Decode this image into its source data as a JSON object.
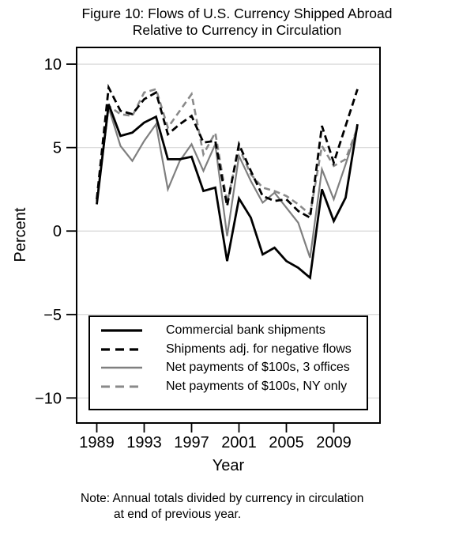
{
  "title": {
    "line1": "Figure 10: Flows of U.S. Currency Shipped Abroad",
    "line2": "Relative to Currency in Circulation"
  },
  "axes": {
    "y_label": "Percent",
    "x_label": "Year",
    "y_ticks": [
      {
        "value": 10,
        "label": "10"
      },
      {
        "value": 5,
        "label": "5"
      },
      {
        "value": 0,
        "label": "0"
      },
      {
        "value": -5,
        "label": "−5"
      },
      {
        "value": -10,
        "label": "−10"
      }
    ],
    "x_ticks": [
      {
        "value": 1989,
        "label": "1989"
      },
      {
        "value": 1993,
        "label": "1993"
      },
      {
        "value": 1997,
        "label": "1997"
      },
      {
        "value": 2001,
        "label": "2001"
      },
      {
        "value": 2005,
        "label": "2005"
      },
      {
        "value": 2009,
        "label": "2009"
      }
    ]
  },
  "note": {
    "line1": "Note: Annual totals divided by currency in circulation",
    "line2": "at end of previous year."
  },
  "colors": {
    "background": "#ffffff",
    "plot_border": "#000000",
    "gridline": "#d8d8d8",
    "tick": "#000000",
    "black_series": "#000000",
    "gray_series": "#7f7f7f",
    "gray_dashed_series": "#8a8a8a"
  },
  "chart_data": {
    "type": "line",
    "title": "Figure 10: Flows of U.S. Currency Shipped Abroad Relative to Currency in Circulation",
    "xlabel": "Year",
    "ylabel": "Percent",
    "xlim": [
      1987.3,
      2012.9
    ],
    "ylim": [
      -11.5,
      11.0
    ],
    "y_gridlines": [
      -10,
      -5,
      0,
      5,
      10
    ],
    "grid": true,
    "legend_position": "inside-bottom-left",
    "x": [
      1989,
      1990,
      1991,
      1992,
      1993,
      1994,
      1995,
      1996,
      1997,
      1998,
      1999,
      2000,
      2001,
      2002,
      2003,
      2004,
      2005,
      2006,
      2007,
      2008,
      2009,
      2010,
      2011
    ],
    "series": [
      {
        "name": "Commercial bank shipments",
        "color": "#000000",
        "dash": null,
        "width": 2.8,
        "values": [
          1.6,
          7.6,
          5.7,
          5.9,
          6.5,
          6.85,
          4.3,
          4.3,
          4.45,
          2.4,
          2.6,
          -1.8,
          1.95,
          0.8,
          -1.4,
          -1.0,
          -1.8,
          -2.2,
          -2.8,
          2.5,
          0.6,
          2.0,
          6.4
        ]
      },
      {
        "name": "Shipments adj. for negative flows",
        "color": "#000000",
        "dash": "9 5",
        "width": 2.8,
        "values": [
          1.9,
          8.6,
          7.2,
          7.0,
          7.9,
          8.3,
          5.8,
          6.4,
          6.9,
          5.3,
          5.4,
          1.5,
          5.2,
          3.6,
          2.1,
          1.8,
          1.9,
          1.2,
          0.8,
          6.3,
          4.1,
          6.3,
          8.5
        ]
      },
      {
        "name": "Net payments of $100s, 3 offices",
        "color": "#7f7f7f",
        "dash": null,
        "width": 2.2,
        "values": [
          1.7,
          7.4,
          5.1,
          4.2,
          5.4,
          6.4,
          2.5,
          4.2,
          5.2,
          3.6,
          5.2,
          -0.3,
          4.5,
          3.0,
          1.7,
          2.3,
          1.4,
          0.5,
          -1.6,
          3.7,
          1.9,
          4.0,
          6.2
        ]
      },
      {
        "name": "Net payments of $100s, NY only",
        "color": "#8a8a8a",
        "dash": "8 5",
        "width": 2.6,
        "values": [
          1.8,
          7.5,
          7.0,
          6.9,
          8.3,
          8.5,
          6.2,
          7.2,
          8.2,
          4.6,
          5.9,
          1.7,
          5.0,
          3.4,
          2.6,
          2.4,
          2.1,
          1.6,
          1.0,
          5.1,
          3.9,
          4.3,
          6.2
        ]
      }
    ]
  }
}
